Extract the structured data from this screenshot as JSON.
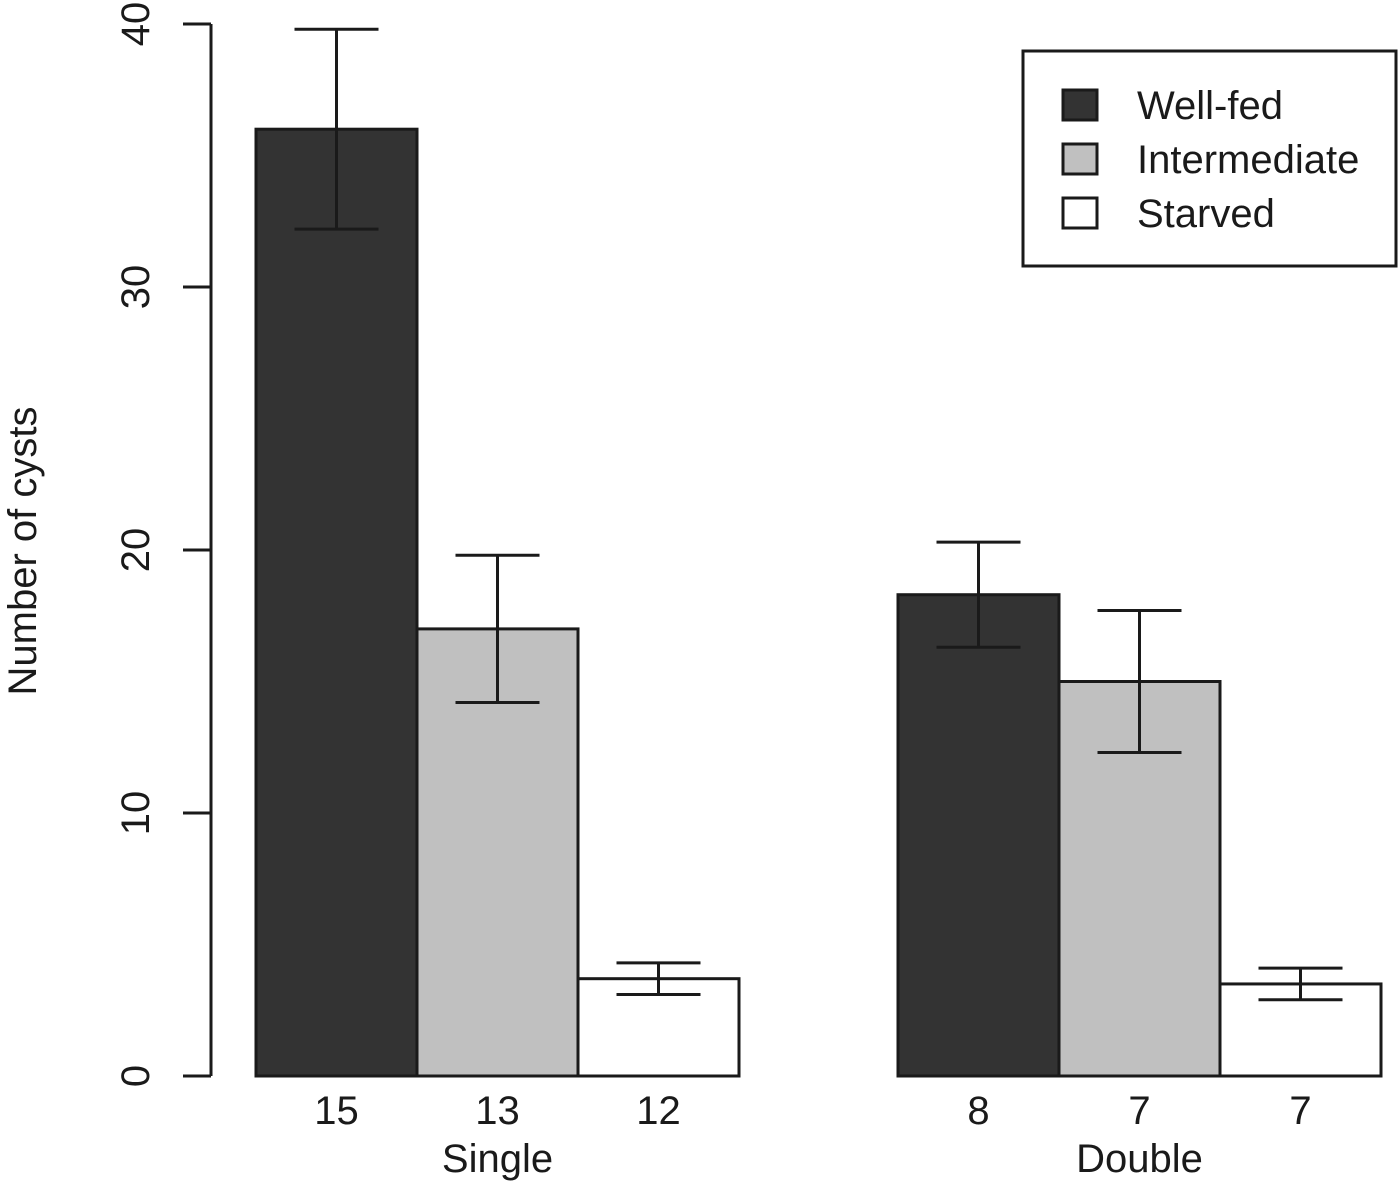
{
  "chart_data": {
    "type": "bar",
    "ylabel": "Number of cysts",
    "ylim": [
      0,
      40
    ],
    "yticks": [
      "0",
      "10",
      "20",
      "30",
      "40"
    ],
    "groups": [
      "Single",
      "Double"
    ],
    "series": [
      {
        "name": "Well-fed",
        "color": "#333333",
        "values": [
          36.0,
          18.3
        ],
        "error": [
          3.8,
          2.0
        ],
        "n": [
          "15",
          "8"
        ]
      },
      {
        "name": "Intermediate",
        "color": "#c0c0c0",
        "values": [
          17.0,
          15.0
        ],
        "error": [
          2.8,
          2.7
        ],
        "n": [
          "13",
          "7"
        ]
      },
      {
        "name": "Starved",
        "color": "#ffffff",
        "values": [
          3.7,
          3.5
        ],
        "error": [
          0.6,
          0.6
        ],
        "n": [
          "12",
          "7"
        ]
      }
    ],
    "legend_position": "top-right",
    "grid": false
  }
}
